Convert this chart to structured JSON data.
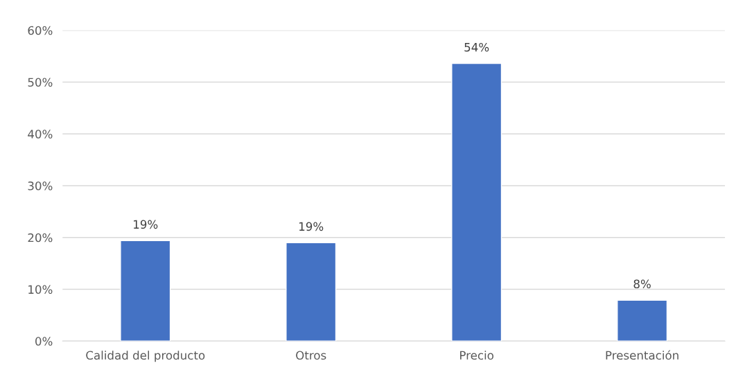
{
  "chart_data": {
    "type": "bar",
    "categories": [
      "Calidad del producto",
      "Otros",
      "Precio",
      "Presentación"
    ],
    "values": [
      19.4,
      19.0,
      53.6,
      7.9
    ],
    "value_labels": [
      "19%",
      "19%",
      "54%",
      "8%"
    ],
    "color": "#4472c4",
    "ylim": [
      0,
      60
    ],
    "yticks": [
      {
        "value": 0,
        "label": "0%"
      },
      {
        "value": 10,
        "label": "10%"
      },
      {
        "value": 20,
        "label": "20%"
      },
      {
        "value": 30,
        "label": "30%"
      },
      {
        "value": 40,
        "label": "40%"
      },
      {
        "value": 50,
        "label": "50%"
      },
      {
        "value": 60,
        "label": "60%"
      }
    ],
    "grid": "y"
  }
}
